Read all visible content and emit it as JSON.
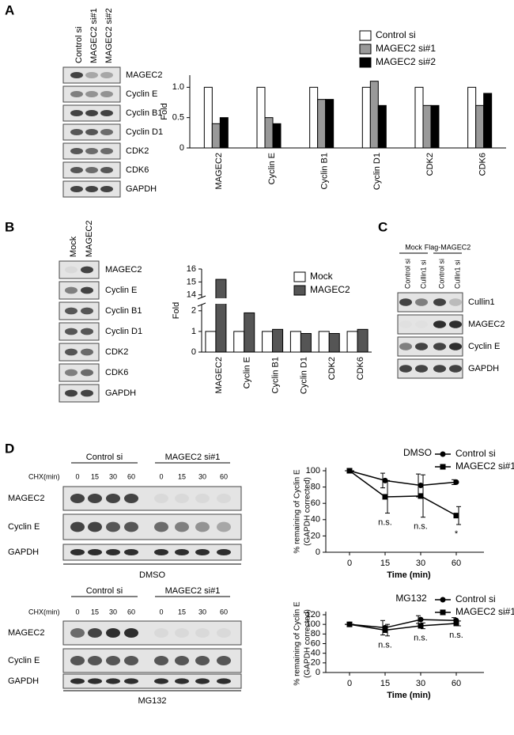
{
  "panel_labels": [
    "A",
    "B",
    "C",
    "D"
  ],
  "blots": {
    "A": {
      "lanes": [
        "Control si",
        "MAGEC2 si#1",
        "MAGEC2 si#2"
      ],
      "proteins": [
        "MAGEC2",
        "Cyclin E",
        "Cyclin B1",
        "Cyclin D1",
        "CDK2",
        "CDK6",
        "GAPDH"
      ]
    },
    "B": {
      "lanes": [
        "Mock",
        "MAGEC2"
      ],
      "proteins": [
        "MAGEC2",
        "Cyclin E",
        "Cyclin B1",
        "Cyclin D1",
        "CDK2",
        "CDK6",
        "GAPDH"
      ]
    },
    "C": {
      "groups": [
        "Mock",
        "Flag-MAGEC2"
      ],
      "lanes": [
        "Control si",
        "Cullin1 si",
        "Control si",
        "Cullin1 si"
      ],
      "proteins": [
        "Cullin1",
        "MAGEC2",
        "Cyclin E",
        "GAPDH"
      ]
    },
    "D_DMSO": {
      "groups": [
        "Control si",
        "MAGEC2 si#1"
      ],
      "time_label": "CHX(min)",
      "times": [
        0,
        15,
        30,
        60,
        0,
        15,
        30,
        60
      ],
      "proteins": [
        "MAGEC2",
        "Cyclin E",
        "GAPDH"
      ],
      "treatment": "DMSO"
    },
    "D_MG132": {
      "groups": [
        "Control si",
        "MAGEC2 si#1"
      ],
      "time_label": "CHX(min)",
      "times": [
        0,
        15,
        30,
        60,
        0,
        15,
        30,
        60
      ],
      "proteins": [
        "MAGEC2",
        "Cyclin E",
        "GAPDH"
      ],
      "treatment": "MG132"
    }
  },
  "chart_data": [
    {
      "type": "bar",
      "ylabel": "Fold",
      "categories": [
        "MAGEC2",
        "Cyclin E",
        "Cyclin B1",
        "Cyclin D1",
        "CDK2",
        "CDK6"
      ],
      "series": [
        {
          "name": "Control si",
          "color": "#ffffff",
          "values": [
            1,
            1,
            1,
            1,
            1,
            1
          ]
        },
        {
          "name": "MAGEC2 si#1",
          "color": "#999999",
          "values": [
            0.4,
            0.5,
            0.8,
            1.1,
            0.7,
            0.7
          ]
        },
        {
          "name": "MAGEC2 si#2",
          "color": "#000000",
          "values": [
            0.5,
            0.4,
            0.8,
            0.7,
            0.7,
            0.9
          ]
        }
      ],
      "ylim": [
        0,
        1.2
      ],
      "yticks": [
        0,
        0.5,
        {
          "value": 1,
          "label": "1.0"
        }
      ]
    },
    {
      "type": "bar",
      "ylabel": "Fold",
      "categories": [
        "MAGEC2",
        "Cyclin E",
        "Cyclin B1",
        "Cyclin D1",
        "CDK2",
        "CDK6"
      ],
      "series": [
        {
          "name": "Mock",
          "color": "#ffffff",
          "values": [
            1,
            1,
            1,
            1,
            1,
            1
          ]
        },
        {
          "name": "MAGEC2",
          "color": "#555555",
          "values": [
            15.2,
            1.9,
            1.1,
            0.9,
            0.9,
            1.1
          ]
        }
      ],
      "ylim_segments": [
        [
          0,
          2.3
        ],
        [
          13.8,
          16
        ]
      ],
      "yticks": [
        0,
        1,
        2,
        14,
        15,
        16
      ]
    },
    {
      "type": "line",
      "title": "DMSO",
      "xlabel": "Time  (min)",
      "ylabel": [
        "% remaining of Cyclin E",
        "(GAPDH corrected)"
      ],
      "categories": [
        "0",
        "15",
        "30",
        "60"
      ],
      "series": [
        {
          "name": "Control si",
          "marker": "circle",
          "color": "#000000",
          "values": [
            100,
            88,
            82,
            86
          ],
          "errors": [
            0,
            9,
            14,
            3
          ]
        },
        {
          "name": "MAGEC2 si#1",
          "marker": "square",
          "color": "#000000",
          "values": [
            100,
            68,
            69,
            45
          ],
          "errors": [
            0,
            20,
            26,
            11
          ]
        }
      ],
      "ylim": [
        0,
        100
      ],
      "yticks": [
        0,
        20,
        40,
        60,
        80,
        100
      ],
      "annotations": [
        null,
        "n.s.",
        "n.s.",
        "*"
      ]
    },
    {
      "type": "line",
      "title": "MG132",
      "xlabel": "Time  (min)",
      "ylabel": [
        "% remaining of Cyclin E",
        "(GAPDH corrected)"
      ],
      "categories": [
        "0",
        "15",
        "30",
        "60"
      ],
      "series": [
        {
          "name": "Control si",
          "marker": "circle",
          "color": "#000000",
          "values": [
            100,
            93,
            110,
            108
          ],
          "errors": [
            0,
            15,
            8,
            6
          ]
        },
        {
          "name": "MAGEC2 si#1",
          "marker": "square",
          "color": "#000000",
          "values": [
            100,
            88,
            97,
            102
          ],
          "errors": [
            0,
            12,
            6,
            5
          ]
        }
      ],
      "ylim": [
        0,
        120
      ],
      "yticks": [
        0,
        20,
        40,
        60,
        80,
        100,
        120
      ],
      "annotations": [
        null,
        "n.s.",
        "n.s.",
        "n.s."
      ]
    }
  ]
}
